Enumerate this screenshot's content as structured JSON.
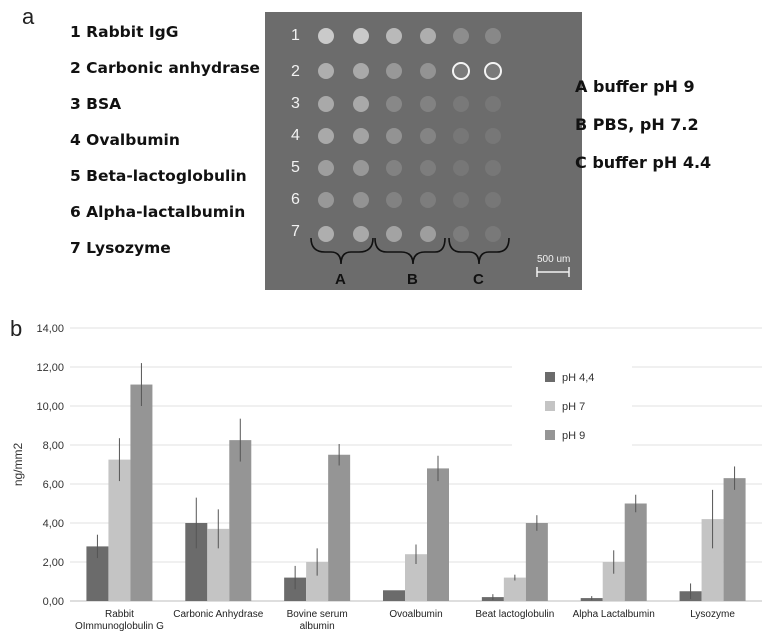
{
  "panels": {
    "a": "a",
    "b": "b"
  },
  "proteins": [
    "1 Rabbit IgG",
    "2 Carbonic anhydrase",
    "3 BSA",
    "4 Ovalbumin",
    "5 Beta-lactoglobulin",
    "6 Alpha-lactalbumin",
    "7 Lysozyme"
  ],
  "buffers": [
    "A buffer pH 9",
    "B PBS, pH 7.2",
    "C buffer pH 4.4"
  ],
  "micrograph": {
    "row_labels": [
      "1",
      "2",
      "3",
      "4",
      "5",
      "6",
      "7"
    ],
    "group_labels": [
      "A",
      "B",
      "C"
    ],
    "scale_bar": "500 um",
    "background": "#6c6c6c"
  },
  "chart_data": {
    "type": "bar",
    "title": "",
    "xlabel": "",
    "ylabel": "ng/mm2",
    "ylim": [
      0,
      14
    ],
    "yticks": [
      "0,00",
      "2,00",
      "4,00",
      "6,00",
      "8,00",
      "10,00",
      "12,00",
      "14,00"
    ],
    "grid": true,
    "legend_position": "top-right",
    "categories": [
      [
        "Rabbit",
        "OImmunoglobulin G"
      ],
      [
        "Carbonic Anhydrase"
      ],
      [
        "Bovine serum",
        "albumin"
      ],
      [
        "Ovoalbumin"
      ],
      [
        "Beat lactoglobulin"
      ],
      [
        "Alpha Lactalbumin"
      ],
      [
        "Lysozyme"
      ]
    ],
    "series": [
      {
        "name": "pH 4,4",
        "color": "#6b6b6b",
        "values": [
          2.8,
          4.0,
          1.2,
          0.55,
          0.2,
          0.15,
          0.5
        ],
        "errors": [
          0.6,
          1.3,
          0.6,
          0.0,
          0.15,
          0.1,
          0.4
        ]
      },
      {
        "name": "pH 7",
        "color": "#c4c4c4",
        "values": [
          7.25,
          3.7,
          2.0,
          2.4,
          1.2,
          2.0,
          4.2
        ],
        "errors": [
          1.1,
          1.0,
          0.7,
          0.5,
          0.15,
          0.6,
          1.5
        ]
      },
      {
        "name": "pH 9",
        "color": "#959595",
        "values": [
          11.1,
          8.25,
          7.5,
          6.8,
          4.0,
          5.0,
          6.3
        ],
        "errors": [
          1.1,
          1.1,
          0.55,
          0.65,
          0.4,
          0.45,
          0.6
        ]
      }
    ]
  }
}
